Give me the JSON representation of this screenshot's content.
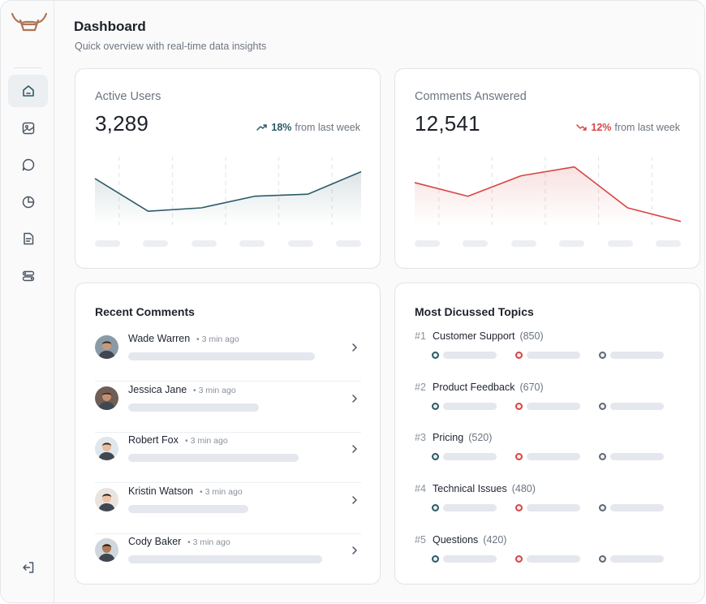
{
  "header": {
    "title": "Dashboard",
    "subtitle": "Quick overview with real-time data insights"
  },
  "sidebar": {
    "items": [
      {
        "icon": "home-icon",
        "active": true
      },
      {
        "icon": "image-icon",
        "active": false
      },
      {
        "icon": "chat-icon",
        "active": false
      },
      {
        "icon": "pie-chart-icon",
        "active": false
      },
      {
        "icon": "document-icon",
        "active": false
      },
      {
        "icon": "toggles-icon",
        "active": false
      }
    ],
    "logout_icon": "logout-icon"
  },
  "colors": {
    "accent": "#2c5a67",
    "negative": "#d64545",
    "neutral": "#5f6873"
  },
  "active_users": {
    "label": "Active Users",
    "value": "3,289",
    "change_pct": "18%",
    "change_text": "from last week",
    "trend": "up"
  },
  "comments_answered": {
    "label": "Comments Answered",
    "value": "12,541",
    "change_pct": "12%",
    "change_text": "from last week",
    "trend": "down"
  },
  "chart_data": [
    {
      "type": "area",
      "x": [
        0,
        1,
        2,
        3,
        4,
        5
      ],
      "values": [
        68,
        20,
        25,
        42,
        45,
        78
      ],
      "ylim": [
        0,
        100
      ],
      "color": "#2c5a67"
    },
    {
      "type": "area",
      "x": [
        0,
        1,
        2,
        3,
        4,
        5
      ],
      "values": [
        62,
        42,
        72,
        85,
        25,
        5
      ],
      "ylim": [
        0,
        100
      ],
      "color": "#d64545"
    }
  ],
  "recent_comments": {
    "title": "Recent Comments",
    "items": [
      {
        "name": "Wade Warren",
        "time": "3 min ago",
        "bar_fraction": 0.7
      },
      {
        "name": "Jessica Jane",
        "time": "3 min ago",
        "bar_fraction": 0.49
      },
      {
        "name": "Robert Fox",
        "time": "3 min ago",
        "bar_fraction": 0.64
      },
      {
        "name": "Kristin Watson",
        "time": "3 min ago",
        "bar_fraction": 0.45
      },
      {
        "name": "Cody Baker",
        "time": "3 min ago",
        "bar_fraction": 0.73
      }
    ]
  },
  "topics": {
    "title": "Most Dicussed Topics",
    "items": [
      {
        "rank": "#1",
        "name": "Customer Support",
        "count": "(850)"
      },
      {
        "rank": "#2",
        "name": "Product Feedback",
        "count": "(670)"
      },
      {
        "rank": "#3",
        "name": "Pricing",
        "count": "(520)"
      },
      {
        "rank": "#4",
        "name": "Technical Issues",
        "count": "(480)"
      },
      {
        "rank": "#5",
        "name": "Questions",
        "count": "(420)"
      }
    ]
  }
}
